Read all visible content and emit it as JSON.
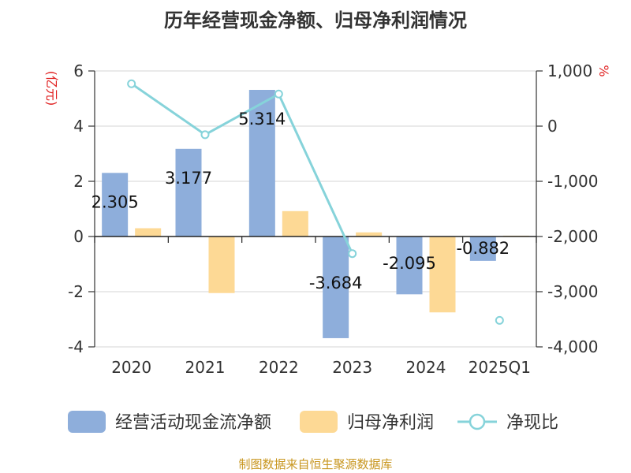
{
  "chart_data": {
    "type": "bar",
    "title": "历年经营现金净额、归母净利润情况",
    "categories": [
      "2020",
      "2021",
      "2022",
      "2023",
      "2024",
      "2025Q1"
    ],
    "left_unit": "(亿元)",
    "right_unit": "%",
    "ylim_left": [
      -4,
      6
    ],
    "yticks_left": [
      "6",
      "4",
      "2",
      "0",
      "-2",
      "-4"
    ],
    "ylim_right": [
      -4000,
      1000
    ],
    "yticks_right": [
      "1,000",
      "0",
      "-1,000",
      "-2,000",
      "-3,000",
      "-4,000"
    ],
    "grid": true,
    "legend_position": "bottom",
    "series": [
      {
        "name": "经营活动现金流净额",
        "kind": "bar",
        "axis": "left",
        "color": "#8eaedb",
        "values": [
          2.305,
          3.177,
          5.314,
          -3.684,
          -2.095,
          -0.882
        ],
        "labels": [
          "2.305",
          "3.177",
          "5.314",
          "-3.684",
          "-2.095",
          "-0.882"
        ]
      },
      {
        "name": "归母净利润",
        "kind": "bar",
        "axis": "left",
        "color": "#fdd995",
        "values": [
          0.3,
          -2.05,
          0.92,
          0.15,
          -2.75,
          0.03
        ]
      },
      {
        "name": "净现比",
        "kind": "line",
        "axis": "right",
        "color": "#86d3da",
        "values": [
          768,
          -155,
          582,
          -2310,
          null,
          -3520
        ]
      }
    ]
  },
  "source": "制图数据来自恒生聚源数据库"
}
